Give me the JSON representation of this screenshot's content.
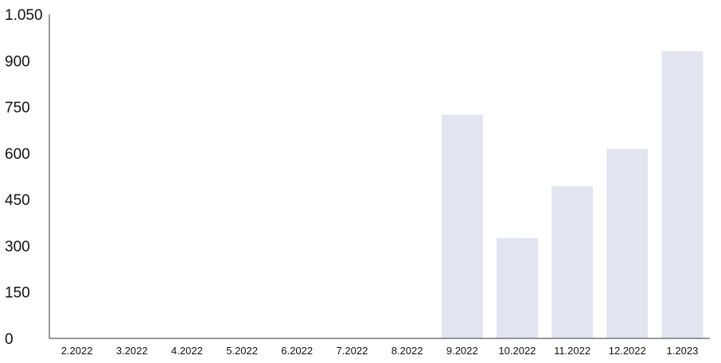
{
  "chart_data": {
    "type": "bar",
    "categories": [
      "2.2022",
      "3.2022",
      "4.2022",
      "5.2022",
      "6.2022",
      "7.2022",
      "8.2022",
      "9.2022",
      "10.2022",
      "11.2022",
      "12.2022",
      "1.2023"
    ],
    "values": [
      0,
      0,
      0,
      0,
      0,
      0,
      0,
      725,
      325,
      493,
      614,
      930
    ],
    "title": "",
    "xlabel": "",
    "ylabel": "",
    "ylim": [
      0,
      1050
    ],
    "yticks": [
      0,
      150,
      300,
      450,
      600,
      750,
      900,
      1050
    ],
    "ytick_labels": [
      "0",
      "150",
      "300",
      "450",
      "600",
      "750",
      "900",
      "1.050"
    ],
    "grid": false,
    "bar_color": "#e2e5f0"
  }
}
